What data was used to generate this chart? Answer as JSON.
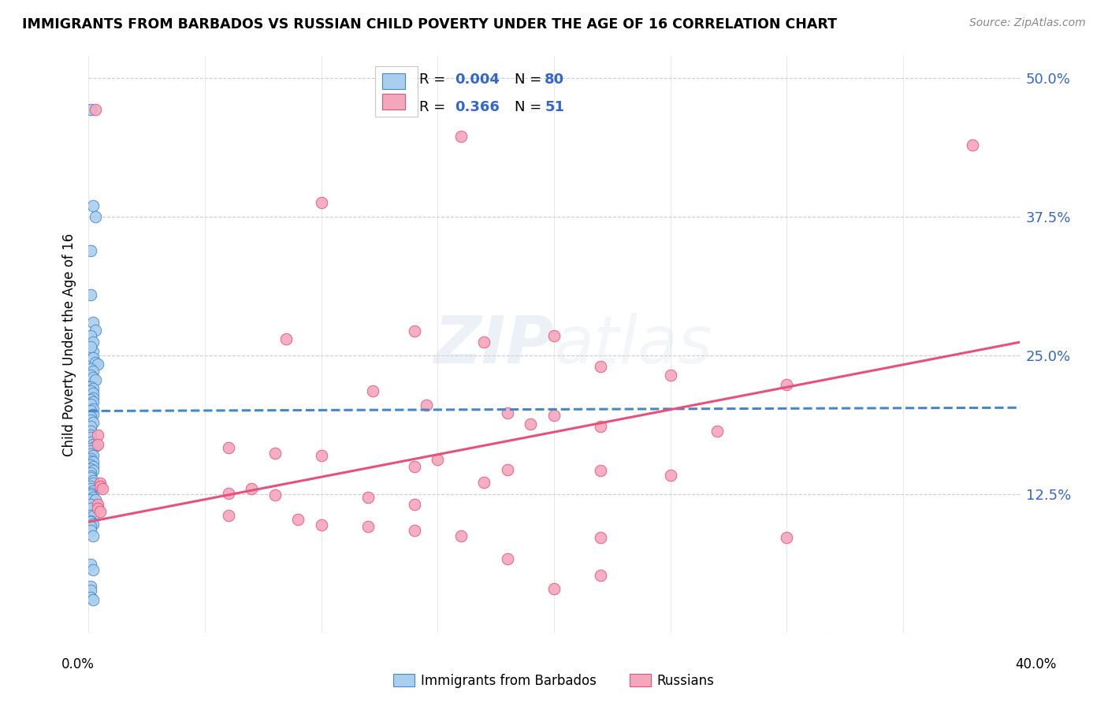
{
  "title": "IMMIGRANTS FROM BARBADOS VS RUSSIAN CHILD POVERTY UNDER THE AGE OF 16 CORRELATION CHART",
  "source": "Source: ZipAtlas.com",
  "ylabel": "Child Poverty Under the Age of 16",
  "y_ticks": [
    0.0,
    0.125,
    0.25,
    0.375,
    0.5
  ],
  "y_tick_labels": [
    "",
    "12.5%",
    "25.0%",
    "37.5%",
    "50.0%"
  ],
  "x_lim": [
    0.0,
    0.4
  ],
  "y_lim": [
    0.0,
    0.52
  ],
  "color_blue": "#aacfee",
  "color_pink": "#f4a7bc",
  "color_blue_dark": "#4488cc",
  "color_pink_dark": "#e8507a",
  "color_blue_line": "#4488cc",
  "color_pink_line": "#e8507a",
  "series1_label": "Immigrants from Barbados",
  "series2_label": "Russians",
  "blue_line_x": [
    0.0,
    0.4
  ],
  "blue_line_y": [
    0.2,
    0.203
  ],
  "pink_line_x": [
    0.0,
    0.4
  ],
  "pink_line_y": [
    0.1,
    0.262
  ],
  "blue_points": [
    [
      0.001,
      0.472
    ],
    [
      0.002,
      0.385
    ],
    [
      0.003,
      0.375
    ],
    [
      0.001,
      0.345
    ],
    [
      0.001,
      0.305
    ],
    [
      0.002,
      0.28
    ],
    [
      0.003,
      0.273
    ],
    [
      0.001,
      0.268
    ],
    [
      0.002,
      0.262
    ],
    [
      0.002,
      0.254
    ],
    [
      0.001,
      0.258
    ],
    [
      0.002,
      0.248
    ],
    [
      0.003,
      0.244
    ],
    [
      0.004,
      0.242
    ],
    [
      0.001,
      0.238
    ],
    [
      0.002,
      0.236
    ],
    [
      0.001,
      0.232
    ],
    [
      0.002,
      0.23
    ],
    [
      0.003,
      0.228
    ],
    [
      0.001,
      0.222
    ],
    [
      0.002,
      0.22
    ],
    [
      0.001,
      0.218
    ],
    [
      0.002,
      0.216
    ],
    [
      0.002,
      0.212
    ],
    [
      0.001,
      0.21
    ],
    [
      0.002,
      0.208
    ],
    [
      0.001,
      0.206
    ],
    [
      0.002,
      0.202
    ],
    [
      0.001,
      0.2
    ],
    [
      0.002,
      0.197
    ],
    [
      0.001,
      0.195
    ],
    [
      0.001,
      0.192
    ],
    [
      0.002,
      0.19
    ],
    [
      0.001,
      0.186
    ],
    [
      0.001,
      0.182
    ],
    [
      0.001,
      0.178
    ],
    [
      0.001,
      0.176
    ],
    [
      0.001,
      0.172
    ],
    [
      0.002,
      0.17
    ],
    [
      0.003,
      0.168
    ],
    [
      0.001,
      0.166
    ],
    [
      0.001,
      0.164
    ],
    [
      0.001,
      0.161
    ],
    [
      0.002,
      0.16
    ],
    [
      0.001,
      0.157
    ],
    [
      0.001,
      0.155
    ],
    [
      0.002,
      0.154
    ],
    [
      0.001,
      0.151
    ],
    [
      0.002,
      0.15
    ],
    [
      0.001,
      0.148
    ],
    [
      0.002,
      0.146
    ],
    [
      0.001,
      0.144
    ],
    [
      0.001,
      0.141
    ],
    [
      0.001,
      0.14
    ],
    [
      0.002,
      0.137
    ],
    [
      0.002,
      0.135
    ],
    [
      0.001,
      0.132
    ],
    [
      0.001,
      0.13
    ],
    [
      0.002,
      0.128
    ],
    [
      0.001,
      0.126
    ],
    [
      0.001,
      0.124
    ],
    [
      0.002,
      0.122
    ],
    [
      0.001,
      0.12
    ],
    [
      0.003,
      0.12
    ],
    [
      0.001,
      0.116
    ],
    [
      0.001,
      0.112
    ],
    [
      0.001,
      0.106
    ],
    [
      0.002,
      0.105
    ],
    [
      0.001,
      0.101
    ],
    [
      0.001,
      0.1
    ],
    [
      0.002,
      0.098
    ],
    [
      0.001,
      0.096
    ],
    [
      0.001,
      0.092
    ],
    [
      0.002,
      0.087
    ],
    [
      0.001,
      0.062
    ],
    [
      0.002,
      0.057
    ],
    [
      0.001,
      0.042
    ],
    [
      0.001,
      0.038
    ],
    [
      0.001,
      0.032
    ],
    [
      0.002,
      0.03
    ]
  ],
  "pink_points": [
    [
      0.003,
      0.472
    ],
    [
      0.16,
      0.448
    ],
    [
      0.38,
      0.44
    ],
    [
      0.1,
      0.388
    ],
    [
      0.14,
      0.272
    ],
    [
      0.2,
      0.268
    ],
    [
      0.085,
      0.265
    ],
    [
      0.17,
      0.262
    ],
    [
      0.22,
      0.24
    ],
    [
      0.25,
      0.232
    ],
    [
      0.3,
      0.224
    ],
    [
      0.122,
      0.218
    ],
    [
      0.145,
      0.205
    ],
    [
      0.18,
      0.198
    ],
    [
      0.2,
      0.196
    ],
    [
      0.19,
      0.188
    ],
    [
      0.22,
      0.186
    ],
    [
      0.27,
      0.182
    ],
    [
      0.004,
      0.178
    ],
    [
      0.004,
      0.17
    ],
    [
      0.06,
      0.167
    ],
    [
      0.08,
      0.162
    ],
    [
      0.1,
      0.16
    ],
    [
      0.15,
      0.156
    ],
    [
      0.14,
      0.15
    ],
    [
      0.18,
      0.147
    ],
    [
      0.22,
      0.146
    ],
    [
      0.25,
      0.142
    ],
    [
      0.17,
      0.136
    ],
    [
      0.005,
      0.135
    ],
    [
      0.005,
      0.132
    ],
    [
      0.006,
      0.13
    ],
    [
      0.07,
      0.13
    ],
    [
      0.06,
      0.126
    ],
    [
      0.08,
      0.124
    ],
    [
      0.12,
      0.122
    ],
    [
      0.14,
      0.116
    ],
    [
      0.004,
      0.116
    ],
    [
      0.004,
      0.112
    ],
    [
      0.005,
      0.109
    ],
    [
      0.06,
      0.106
    ],
    [
      0.09,
      0.102
    ],
    [
      0.1,
      0.097
    ],
    [
      0.12,
      0.096
    ],
    [
      0.14,
      0.092
    ],
    [
      0.16,
      0.087
    ],
    [
      0.22,
      0.086
    ],
    [
      0.3,
      0.086
    ],
    [
      0.18,
      0.067
    ],
    [
      0.22,
      0.052
    ],
    [
      0.2,
      0.04
    ]
  ]
}
